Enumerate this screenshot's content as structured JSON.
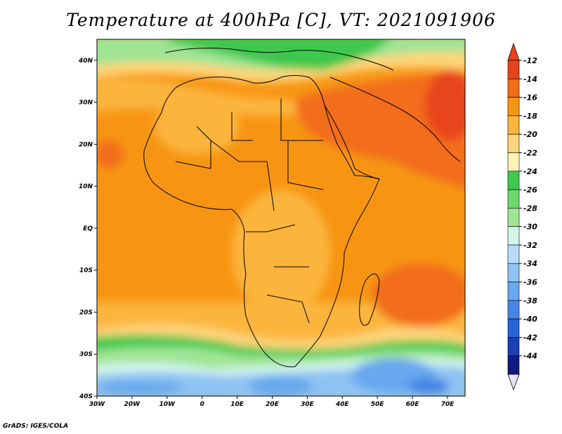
{
  "title": "Temperature at 400hPa [C], VT: 2021091906",
  "credit": "GrADS: IGES/COLA",
  "map": {
    "region": "Africa",
    "lon_range": [
      -30,
      75
    ],
    "lat_range": [
      -40,
      45
    ],
    "lon_ticks": [
      "30W",
      "20W",
      "10W",
      "0",
      "10E",
      "20E",
      "30E",
      "40E",
      "50E",
      "60E",
      "70E"
    ],
    "lat_ticks": [
      "40N",
      "30N",
      "20N",
      "10N",
      "EQ",
      "10S",
      "20S",
      "30S",
      "40S"
    ]
  },
  "colorbar": {
    "labels": [
      "-12",
      "-14",
      "-16",
      "-18",
      "-20",
      "-22",
      "-24",
      "-26",
      "-28",
      "-30",
      "-32",
      "-34",
      "-36",
      "-38",
      "-40",
      "-42",
      "-44"
    ],
    "colors": [
      "#e8441b",
      "#f26d1a",
      "#f79513",
      "#fbb53c",
      "#fed47a",
      "#fff2b6",
      "#3ec84e",
      "#6ed86a",
      "#a0e595",
      "#d3f5ee",
      "#b6dcf8",
      "#8ec3f3",
      "#68a8ee",
      "#4686e5",
      "#2a63d6",
      "#1b3fb5",
      "#0f1b80"
    ]
  }
}
